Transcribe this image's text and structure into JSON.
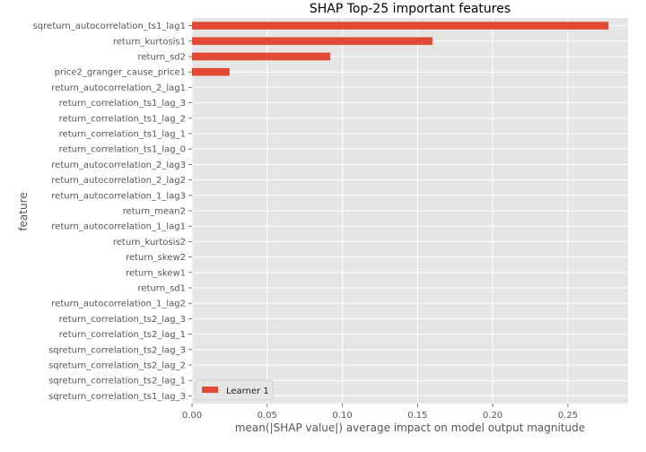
{
  "chart_data": {
    "type": "bar",
    "orientation": "horizontal",
    "title": "SHAP Top-25 important features",
    "xlabel": "mean(|SHAP value|) average impact on model output magnitude",
    "ylabel": "feature",
    "xlim": [
      0,
      0.29
    ],
    "xticks": [
      0.0,
      0.05,
      0.1,
      0.15,
      0.2,
      0.25
    ],
    "xtick_labels": [
      "0.00",
      "0.05",
      "0.10",
      "0.15",
      "0.20",
      "0.25"
    ],
    "grid": true,
    "legend_position": "lower-left",
    "categories": [
      "sqreturn_autocorrelation_ts1_lag1",
      "return_kurtosis1",
      "return_sd2",
      "price2_granger_cause_price1",
      "return_autocorrelation_2_lag1",
      "return_correlation_ts1_lag_3",
      "return_correlation_ts1_lag_2",
      "return_correlation_ts1_lag_1",
      "return_correlation_ts1_lag_0",
      "return_autocorrelation_2_lag3",
      "return_autocorrelation_2_lag2",
      "return_autocorrelation_1_lag3",
      "return_mean2",
      "return_autocorrelation_1_lag1",
      "return_kurtosis2",
      "return_skew2",
      "return_skew1",
      "return_sd1",
      "return_autocorrelation_1_lag2",
      "return_correlation_ts2_lag_3",
      "return_correlation_ts2_lag_1",
      "sqreturn_correlation_ts2_lag_3",
      "sqreturn_correlation_ts2_lag_2",
      "sqreturn_correlation_ts2_lag_1",
      "sqreturn_correlation_ts1_lag_3"
    ],
    "series": [
      {
        "name": "Learner 1",
        "color": "#E24A33",
        "values": [
          0.277,
          0.16,
          0.092,
          0.025,
          0,
          0,
          0,
          0,
          0,
          0,
          0,
          0,
          0,
          0,
          0,
          0,
          0,
          0,
          0,
          0,
          0,
          0,
          0,
          0,
          0
        ]
      }
    ]
  }
}
